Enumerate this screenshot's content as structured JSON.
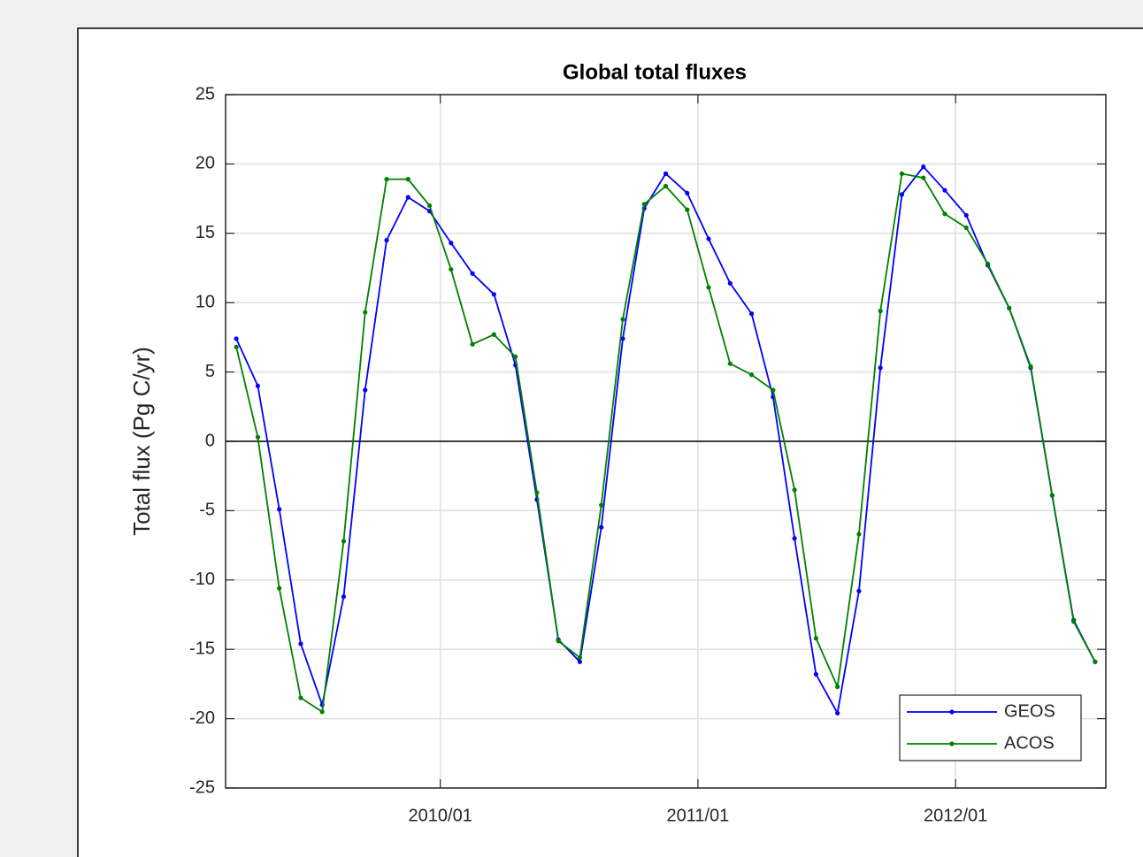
{
  "chart_data": {
    "type": "line",
    "title": "Global total fluxes",
    "y_label": "Total flux (Pg C/yr)",
    "x": [
      "2009/03",
      "2009/04",
      "2009/05",
      "2009/06",
      "2009/07",
      "2009/08",
      "2009/09",
      "2009/10",
      "2009/11",
      "2009/12",
      "2010/01",
      "2010/02",
      "2010/03",
      "2010/04",
      "2010/05",
      "2010/06",
      "2010/07",
      "2010/08",
      "2010/09",
      "2010/10",
      "2010/11",
      "2010/12",
      "2011/01",
      "2011/02",
      "2011/03",
      "2011/04",
      "2011/05",
      "2011/06",
      "2011/07",
      "2011/08",
      "2011/09",
      "2011/10",
      "2011/11",
      "2011/12",
      "2012/01",
      "2012/02",
      "2012/03",
      "2012/04",
      "2012/05",
      "2012/06",
      "2012/07"
    ],
    "series": [
      {
        "name": "GEOS",
        "color": "#0000ff",
        "values": [
          7.4,
          4.0,
          -4.9,
          -14.6,
          -19.0,
          -11.2,
          3.7,
          14.5,
          17.6,
          16.6,
          14.3,
          12.1,
          10.6,
          5.5,
          -4.2,
          -14.3,
          -15.9,
          -6.2,
          7.4,
          16.8,
          19.3,
          17.9,
          14.6,
          11.4,
          9.2,
          3.2,
          -7.0,
          -16.8,
          -19.6,
          -10.8,
          5.3,
          17.8,
          19.8,
          18.1,
          16.3,
          12.7,
          9.6,
          5.3,
          -3.9,
          -12.9,
          -15.9
        ]
      },
      {
        "name": "ACOS",
        "color": "#008000",
        "values": [
          6.8,
          0.3,
          -10.6,
          -18.5,
          -19.5,
          -7.2,
          9.3,
          18.9,
          18.9,
          17.0,
          12.4,
          7.0,
          7.7,
          6.1,
          -3.7,
          -14.4,
          -15.6,
          -4.6,
          8.8,
          17.1,
          18.4,
          16.7,
          11.1,
          5.6,
          4.8,
          3.7,
          -3.5,
          -14.2,
          -17.7,
          -6.7,
          9.4,
          19.3,
          19.0,
          16.4,
          15.4,
          12.8,
          9.6,
          5.4,
          -3.9,
          -13.0,
          -15.9
        ]
      }
    ],
    "xlim": [
      "2009/03",
      "2012/08"
    ],
    "xticks": [
      "2010/01",
      "2011/01",
      "2012/01"
    ],
    "ylim": [
      -25,
      25
    ],
    "yticks": [
      -25,
      -20,
      -15,
      -10,
      -5,
      0,
      5,
      10,
      15,
      20,
      25
    ],
    "grid": true,
    "legend": "lower right"
  }
}
